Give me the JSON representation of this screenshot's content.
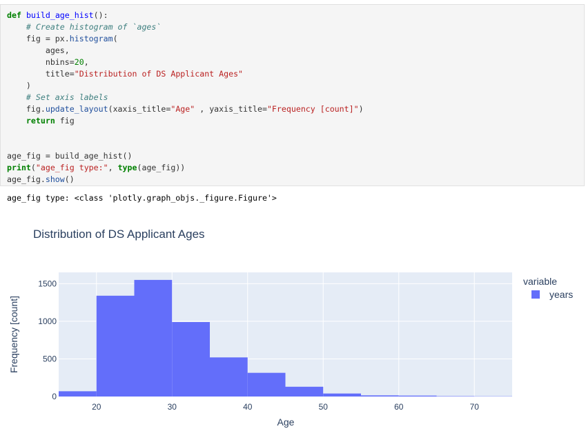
{
  "code_cell": {
    "lines": [
      [
        {
          "t": "kw",
          "v": "def"
        },
        {
          "t": "p",
          "v": " "
        },
        {
          "t": "fn",
          "v": "build_age_hist"
        },
        {
          "t": "p",
          "v": "():"
        }
      ],
      [
        {
          "t": "p",
          "v": "    "
        },
        {
          "t": "cm",
          "v": "# Create histogram of `ages`"
        }
      ],
      [
        {
          "t": "p",
          "v": "    fig = px."
        },
        {
          "t": "attr",
          "v": "histogram"
        },
        {
          "t": "p",
          "v": "("
        }
      ],
      [
        {
          "t": "p",
          "v": "        ages,"
        }
      ],
      [
        {
          "t": "p",
          "v": "        nbins="
        },
        {
          "t": "num",
          "v": "20"
        },
        {
          "t": "p",
          "v": ","
        }
      ],
      [
        {
          "t": "p",
          "v": "        title="
        },
        {
          "t": "str",
          "v": "\"Distribution of DS Applicant Ages\""
        }
      ],
      [
        {
          "t": "p",
          "v": "    )"
        }
      ],
      [
        {
          "t": "p",
          "v": "    "
        },
        {
          "t": "cm",
          "v": "# Set axis labels"
        }
      ],
      [
        {
          "t": "p",
          "v": "    fig."
        },
        {
          "t": "attr",
          "v": "update_layout"
        },
        {
          "t": "p",
          "v": "(xaxis_title="
        },
        {
          "t": "str",
          "v": "\"Age\""
        },
        {
          "t": "p",
          "v": " , yaxis_title="
        },
        {
          "t": "str",
          "v": "\"Frequency [count]\""
        },
        {
          "t": "p",
          "v": ")"
        }
      ],
      [
        {
          "t": "p",
          "v": "    "
        },
        {
          "t": "kw",
          "v": "return"
        },
        {
          "t": "p",
          "v": " fig"
        }
      ],
      [],
      [],
      [
        {
          "t": "p",
          "v": "age_fig = build_age_hist()"
        }
      ],
      [
        {
          "t": "kw",
          "v": "print"
        },
        {
          "t": "p",
          "v": "("
        },
        {
          "t": "str",
          "v": "\"age_fig type:\""
        },
        {
          "t": "p",
          "v": ", "
        },
        {
          "t": "kw",
          "v": "type"
        },
        {
          "t": "p",
          "v": "(age_fig))"
        }
      ],
      [
        {
          "t": "p",
          "v": "age_fig."
        },
        {
          "t": "attr",
          "v": "show"
        },
        {
          "t": "p",
          "v": "()"
        }
      ]
    ]
  },
  "output": {
    "stdout": "age_fig type: <class 'plotly.graph_objs._figure.Figure'>"
  },
  "colors": {
    "bar": "#636efa",
    "plot_bg": "#e5ecf6",
    "grid": "#ffffff",
    "text": "#2a3f5f"
  },
  "chart_data": {
    "type": "bar",
    "title": "Distribution of DS Applicant Ages",
    "xlabel": "Age",
    "ylabel": "Frequency [count]",
    "xlim": [
      15,
      75
    ],
    "ylim": [
      0,
      1650
    ],
    "x_ticks": [
      20,
      30,
      40,
      50,
      60,
      70
    ],
    "y_ticks": [
      0,
      500,
      1000,
      1500
    ],
    "grid": true,
    "bin_width": 5,
    "bin_starts": [
      15,
      20,
      25,
      30,
      35,
      40,
      45,
      50,
      55,
      60,
      65,
      70
    ],
    "series": [
      {
        "name": "years",
        "values": [
          70,
          1340,
          1550,
          990,
          520,
          315,
          130,
          40,
          15,
          12,
          5,
          3
        ]
      }
    ],
    "legend": {
      "title": "variable",
      "position": "right"
    }
  }
}
